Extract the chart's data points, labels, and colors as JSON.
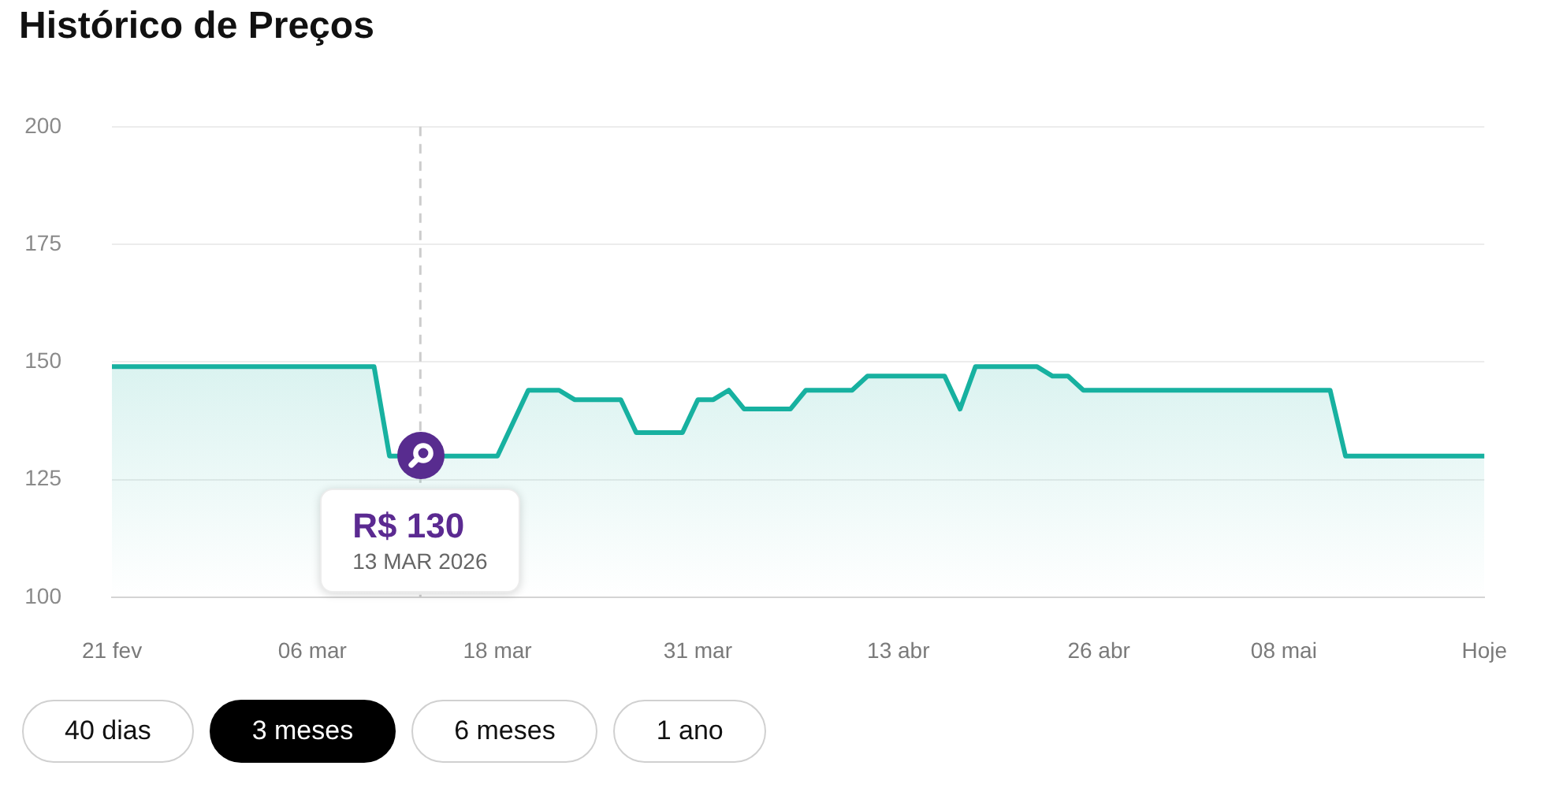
{
  "chart_data": {
    "type": "area",
    "title": "Histórico de Preços",
    "x": [
      "2026-02-21",
      "2026-03-10",
      "2026-03-11",
      "2026-03-18",
      "2026-03-20",
      "2026-03-22",
      "2026-03-23",
      "2026-03-26",
      "2026-03-27",
      "2026-03-30",
      "2026-03-31",
      "2026-04-01",
      "2026-04-02",
      "2026-04-03",
      "2026-04-06",
      "2026-04-07",
      "2026-04-10",
      "2026-04-11",
      "2026-04-16",
      "2026-04-17",
      "2026-04-18",
      "2026-04-22",
      "2026-04-23",
      "2026-04-24",
      "2026-04-25",
      "2026-05-11",
      "2026-05-12",
      "2026-05-21"
    ],
    "values": [
      149,
      149,
      130,
      130,
      144,
      144,
      142,
      142,
      135,
      135,
      142,
      142,
      144,
      140,
      140,
      144,
      144,
      147,
      147,
      140,
      149,
      149,
      147,
      147,
      144,
      144,
      130,
      130
    ],
    "color": "#17b1a0",
    "xlim": [
      "2026-02-21",
      "2026-05-21"
    ],
    "xticks": [
      {
        "value": "2026-02-21",
        "label": "21 fev"
      },
      {
        "value": "2026-03-06",
        "label": "06 mar"
      },
      {
        "value": "2026-03-18",
        "label": "18 mar"
      },
      {
        "value": "2026-03-31",
        "label": "31 mar"
      },
      {
        "value": "2026-04-13",
        "label": "13 abr"
      },
      {
        "value": "2026-04-26",
        "label": "26 abr"
      },
      {
        "value": "2026-05-08",
        "label": "08 mai"
      },
      {
        "value": "2026-05-21",
        "label": "Hoje"
      }
    ],
    "ylim": [
      100,
      200
    ],
    "yticks": [
      100,
      125,
      150,
      175,
      200
    ],
    "grid": "y",
    "ref_lines": [
      {
        "axis": "x",
        "value": "2026-03-13",
        "color": "#cccccc",
        "line_style": "dashed"
      }
    ],
    "annotations": [
      {
        "text": "R$ 130",
        "x": "2026-03-13",
        "y": 130
      },
      "13 MAR 2026",
      "40 dias",
      "3 meses",
      "6 meses",
      "1 ano"
    ]
  }
}
